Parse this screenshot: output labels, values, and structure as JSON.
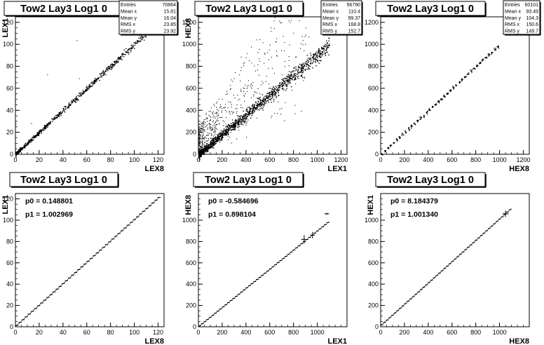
{
  "chart_data": [
    {
      "type": "scatter",
      "title": "Tow2 Lay3 Log1 0",
      "xlabel": "LEX8",
      "ylabel": "LEX1",
      "xlim": [
        0,
        125
      ],
      "ylim": [
        0,
        125
      ],
      "xticks": [
        0,
        20,
        40,
        60,
        80,
        100,
        120
      ],
      "yticks": [
        0,
        20,
        40,
        60,
        80,
        100,
        120
      ],
      "stats": [
        {
          "label": "Entries",
          "value": "70864"
        },
        {
          "label": "Mean x",
          "value": "15.81"
        },
        {
          "label": "Mean y",
          "value": "16.04"
        },
        {
          "label": "RMS x",
          "value": "23.85"
        },
        {
          "label": "RMS y",
          "value": "23.92"
        }
      ],
      "scatter": {
        "slope": 1.0,
        "intercept": 0.3,
        "xmax": 118,
        "spread": 0.8,
        "count": 700,
        "outliers": 5
      }
    },
    {
      "type": "scatter",
      "title": "Tow2 Lay3 Log1 0",
      "xlabel": "LEX1",
      "ylabel": "HEX8",
      "xlim": [
        0,
        1250
      ],
      "ylim": [
        0,
        1250
      ],
      "xticks": [
        0,
        200,
        400,
        600,
        800,
        1000,
        1200
      ],
      "yticks": [
        0,
        200,
        400,
        600,
        800,
        1000,
        1200
      ],
      "stats": [
        {
          "label": "Entries",
          "value": "56790"
        },
        {
          "label": "Mean x",
          "value": "110.4"
        },
        {
          "label": "Mean y",
          "value": "99.37"
        },
        {
          "label": "RMS x",
          "value": "168.8"
        },
        {
          "label": "RMS y",
          "value": "152.7"
        }
      ],
      "scatter": {
        "slope": 0.9,
        "intercept": 0,
        "xmax": 1100,
        "spread": 18,
        "count": 1300,
        "outliers": 550
      }
    },
    {
      "type": "scatter",
      "title": "Tow2 Lay3 Log1 0",
      "xlabel": "HEX8",
      "ylabel": "",
      "xlim": [
        0,
        1250
      ],
      "ylim": [
        0,
        1250
      ],
      "xticks": [
        0,
        200,
        400,
        600,
        800,
        1000,
        1200
      ],
      "yticks": [
        0,
        200,
        400,
        600,
        800,
        1000,
        1200
      ],
      "stats": [
        {
          "label": "Entries",
          "value": "60101"
        },
        {
          "label": "Mean x",
          "value": "93.49"
        },
        {
          "label": "Mean y",
          "value": "104.3"
        },
        {
          "label": "RMS x",
          "value": "150.6"
        },
        {
          "label": "RMS y",
          "value": "149.7"
        }
      ],
      "scatter": {
        "slope": 1.0,
        "intercept": 8,
        "xmax": 1000,
        "spread": 6,
        "count": 260,
        "outliers": 0,
        "bins": 40
      }
    },
    {
      "type": "line",
      "title": "Tow2 Lay3 Log1 0",
      "xlabel": "LEX8",
      "ylabel": "LEX1",
      "xlim": [
        0,
        125
      ],
      "ylim": [
        0,
        125
      ],
      "xticks": [
        0,
        20,
        40,
        60,
        80,
        100,
        120
      ],
      "yticks": [
        0,
        20,
        40,
        60,
        80,
        100,
        120
      ],
      "fit": [
        {
          "label": "p0 =",
          "value": "0.148801"
        },
        {
          "label": "p1 =",
          "value": "1.002969"
        }
      ],
      "profile": {
        "p0": 0.148801,
        "p1": 1.002969,
        "xmax": 121,
        "step": 2.6
      }
    },
    {
      "type": "line",
      "title": "Tow2 Lay3 Log1 0",
      "xlabel": "LEX1",
      "ylabel": "HEX8",
      "xlim": [
        0,
        1250
      ],
      "ylim": [
        0,
        1250
      ],
      "xticks": [
        0,
        200,
        400,
        600,
        800,
        1000
      ],
      "yticks": [
        0,
        200,
        400,
        600,
        800,
        1000
      ],
      "fit": [
        {
          "label": "p0 =",
          "value": "-0.584696"
        },
        {
          "label": "p1 =",
          "value": "0.898104"
        }
      ],
      "profile": {
        "p0": -0.584696,
        "p1": 0.898104,
        "xmax": 1100,
        "step": 22,
        "errors": [
          {
            "x": 890,
            "y": 820,
            "ex": 25,
            "ey": 40
          },
          {
            "x": 960,
            "y": 860,
            "ex": 20,
            "ey": 30
          },
          {
            "x": 1080,
            "y": 1060,
            "ex": 20,
            "ey": 10
          }
        ]
      }
    },
    {
      "type": "line",
      "title": "Tow2 Lay3 Log1 0",
      "xlabel": "HEX8",
      "ylabel": "HEX1",
      "xlim": [
        0,
        1250
      ],
      "ylim": [
        0,
        1250
      ],
      "xticks": [
        0,
        200,
        400,
        600,
        800,
        1000
      ],
      "yticks": [
        0,
        200,
        400,
        600,
        800,
        1000
      ],
      "fit": [
        {
          "label": "p0 =",
          "value": "8.184379"
        },
        {
          "label": "p1 =",
          "value": "1.001340"
        }
      ],
      "profile": {
        "p0": 8.184379,
        "p1": 1.00134,
        "xmax": 1100,
        "step": 22,
        "errors": [
          {
            "x": 1050,
            "y": 1060,
            "ex": 25,
            "ey": 30
          }
        ]
      }
    }
  ]
}
